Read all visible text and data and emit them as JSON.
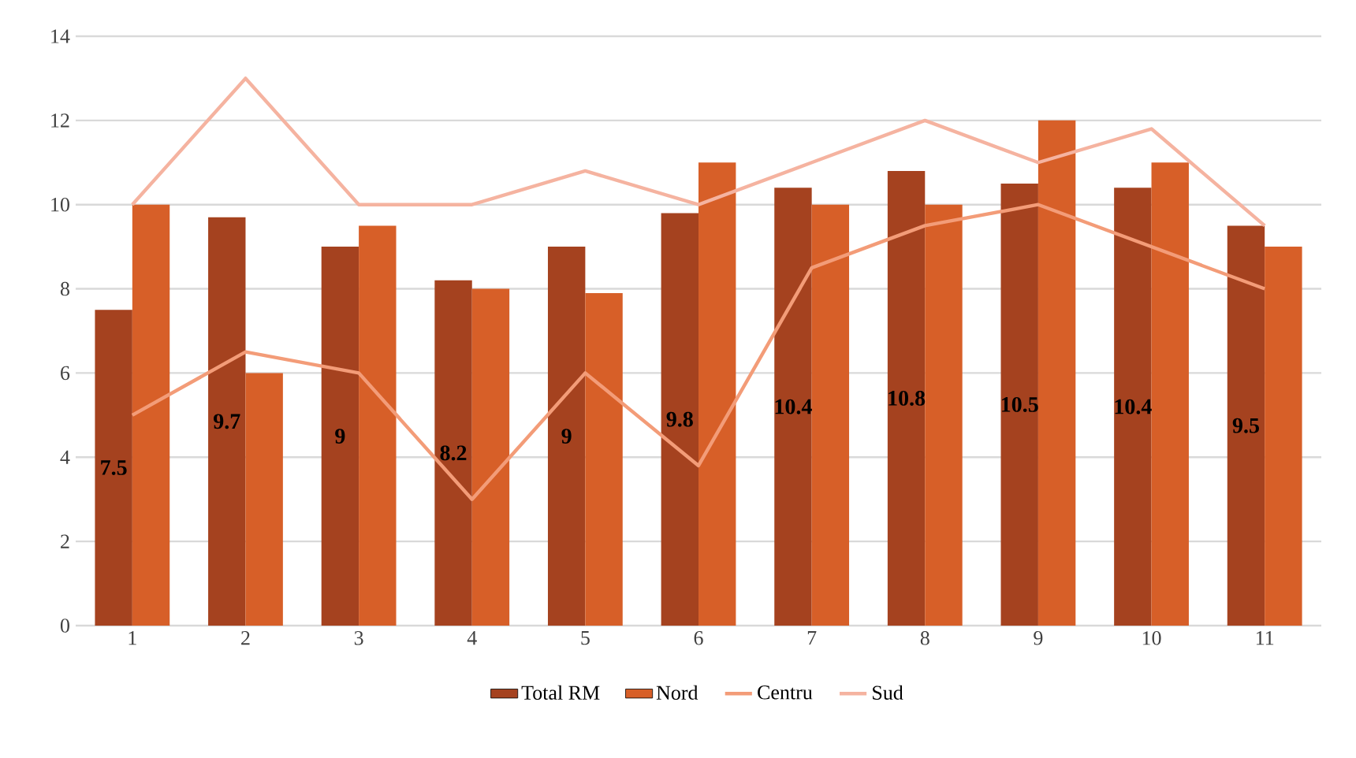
{
  "chart_data": {
    "type": "bar",
    "categories": [
      "1",
      "2",
      "3",
      "4",
      "5",
      "6",
      "7",
      "8",
      "9",
      "10",
      "11"
    ],
    "series": [
      {
        "name": "Total RM",
        "color": "#a5421f",
        "values": [
          7.5,
          9.7,
          9,
          8.2,
          9,
          9.8,
          10.4,
          10.8,
          10.5,
          10.4,
          9.5
        ],
        "value_labels": [
          "7.5",
          "9.7",
          "9",
          "8.2",
          "9",
          "9.8",
          "10.4",
          "10.8",
          "10.5",
          "10.4",
          "9.5"
        ]
      },
      {
        "name": "Nord",
        "color": "#d75f28",
        "values": [
          10,
          6,
          9.5,
          8,
          7.9,
          11,
          10,
          10,
          12,
          11,
          9
        ]
      },
      {
        "name": "Centru",
        "type": "line",
        "color": "#f39c78",
        "values": [
          5,
          6.5,
          6,
          3,
          6,
          3.8,
          8.5,
          9.5,
          10,
          9,
          8
        ]
      },
      {
        "name": "Sud",
        "type": "line",
        "color": "#f5b3a0",
        "values": [
          10,
          13,
          10,
          10,
          10.8,
          10,
          11,
          12,
          11,
          11.8,
          9.5
        ]
      }
    ],
    "ylim": [
      0,
      14
    ],
    "yticks": [
      0,
      2,
      4,
      6,
      8,
      10,
      12,
      14
    ],
    "grid": "y",
    "legend": "bottom"
  }
}
